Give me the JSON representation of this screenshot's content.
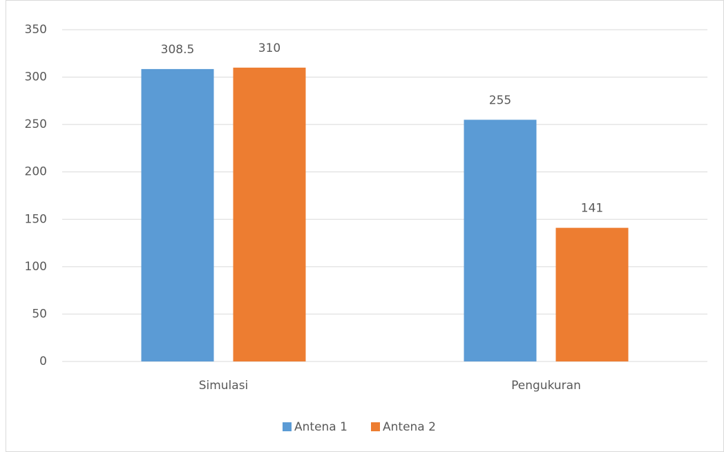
{
  "chart_data": {
    "type": "bar",
    "categories": [
      "Simulasi",
      "Pengukuran"
    ],
    "series": [
      {
        "name": "Antena 1",
        "color": "#5b9bd5",
        "values": [
          308.5,
          255
        ]
      },
      {
        "name": "Antena 2",
        "color": "#ed7d31",
        "values": [
          310,
          141
        ]
      }
    ],
    "ylim": [
      0,
      350
    ],
    "yticks": [
      0,
      50,
      100,
      150,
      200,
      250,
      300,
      350
    ],
    "grid": true,
    "legend": "bottom"
  }
}
